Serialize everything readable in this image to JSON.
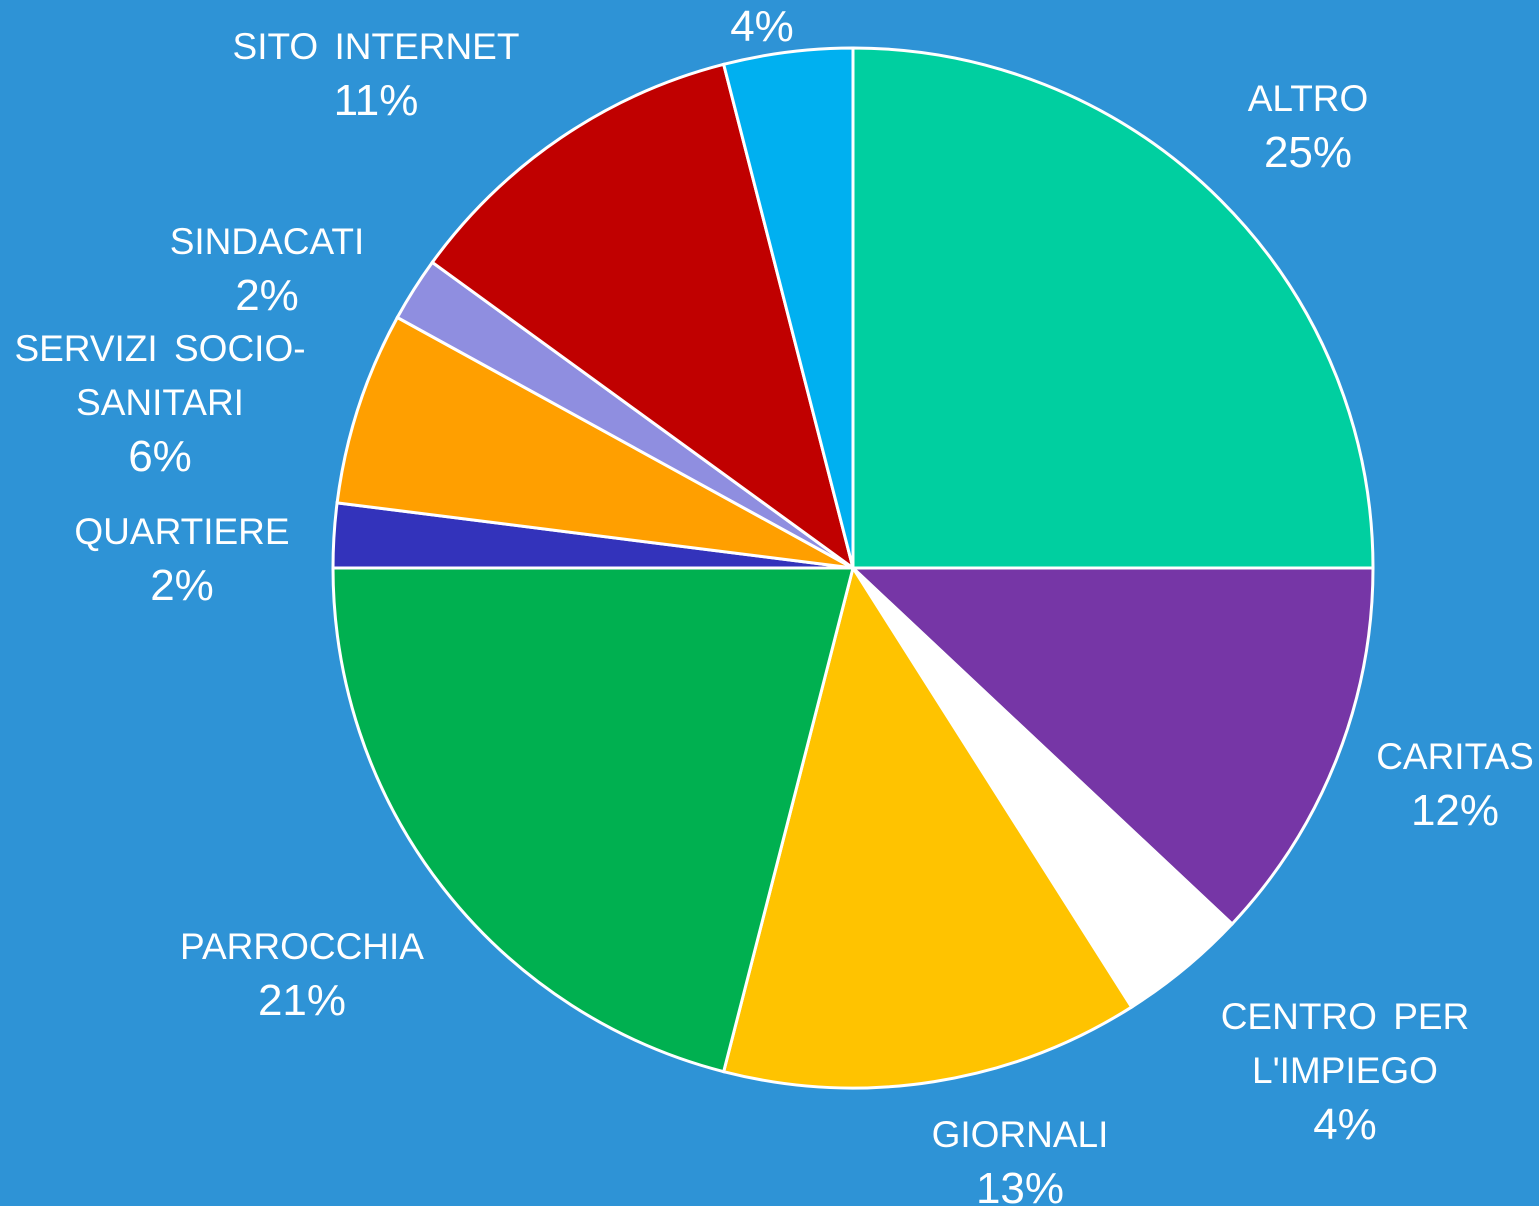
{
  "chart_data": {
    "type": "pie",
    "categories": [
      "ALTRO",
      "CARITAS",
      "CENTRO PER L'IMPIEGO",
      "GIORNALI",
      "PARROCCHIA",
      "QUARTIERE",
      "SERVIZI SOCIO-SANITARI",
      "SINDACATI",
      "SITO INTERNET",
      null
    ],
    "values": [
      25,
      12,
      4,
      13,
      21,
      2,
      6,
      2,
      11,
      4
    ],
    "value_labels": [
      "25%",
      "12%",
      "4%",
      "13%",
      "21%",
      "2%",
      "6%",
      "2%",
      "11%",
      "4%"
    ],
    "colors": [
      "#00cfa0",
      "#7636a6",
      "#ffffff",
      "#ffc300",
      "#00b050",
      "#3333bb",
      "#ff9f00",
      "#8f8ee0",
      "#c00000",
      "#00b0f0"
    ],
    "background": "#2e93d6"
  }
}
